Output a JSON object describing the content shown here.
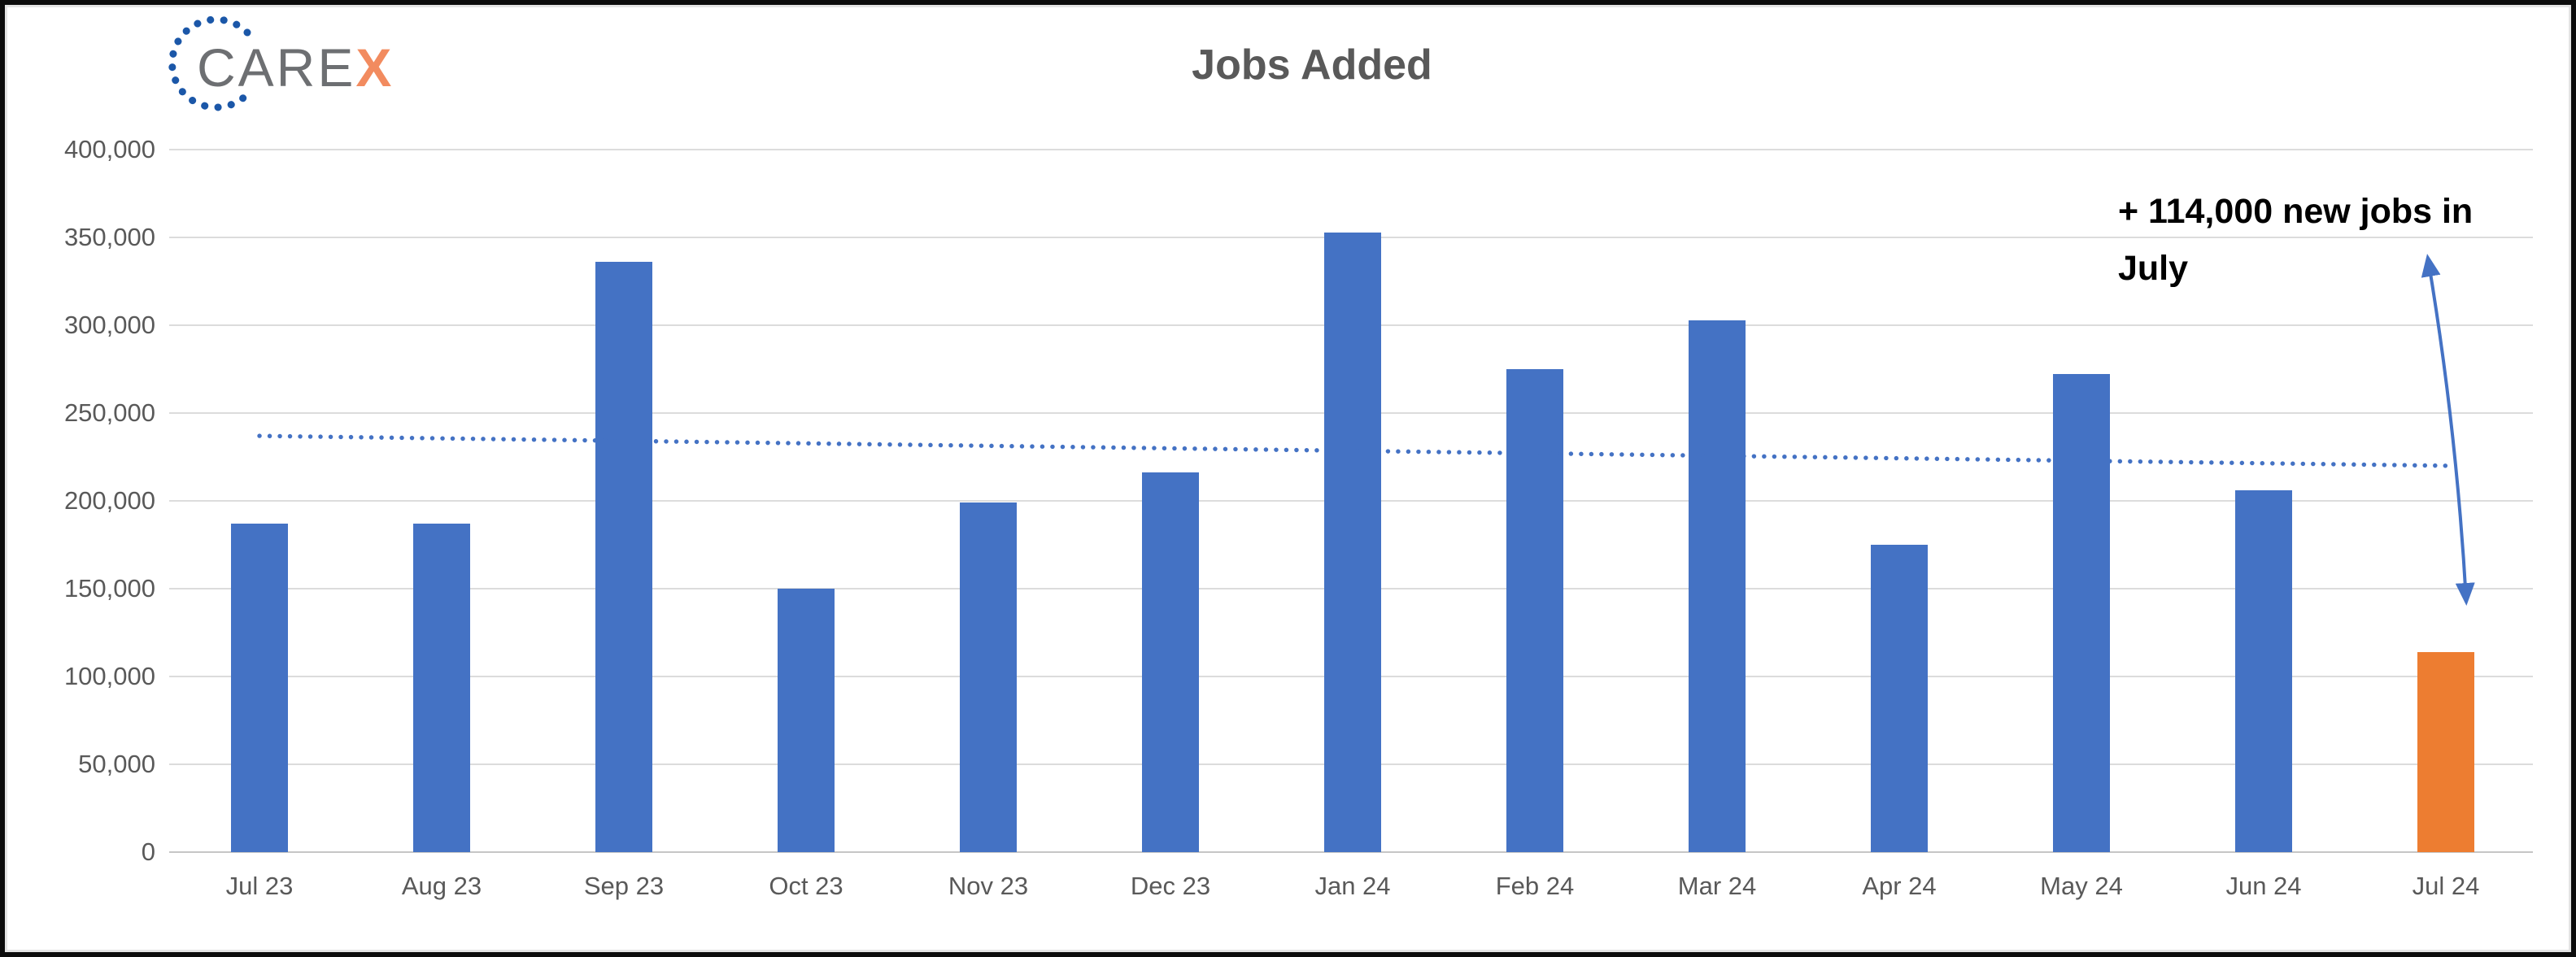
{
  "logo": {
    "text_primary": "CARE",
    "text_accent": "X"
  },
  "chart_data": {
    "type": "bar",
    "title": "Jobs Added",
    "categories": [
      "Jul 23",
      "Aug 23",
      "Sep 23",
      "Oct 23",
      "Nov 23",
      "Dec 23",
      "Jan 24",
      "Feb 24",
      "Mar 24",
      "Apr 24",
      "May 24",
      "Jun 24",
      "Jul 24"
    ],
    "values": [
      187000,
      187000,
      336000,
      150000,
      199000,
      216000,
      353000,
      275000,
      303000,
      175000,
      272000,
      206000,
      114000
    ],
    "highlight_index": 12,
    "xlabel": "",
    "ylabel": "",
    "ylim": [
      0,
      400000
    ],
    "ytick_interval": 50000,
    "ytick_labels": [
      "400,000",
      "350,000",
      "300,000",
      "250,000",
      "200,000",
      "150,000",
      "100,000",
      "50,000",
      "0"
    ],
    "grid": true,
    "legend": false,
    "trendline": {
      "style": "dotted",
      "start_value": 237000,
      "end_value": 220000
    },
    "annotation": {
      "line1": "+ 114,000 new jobs in",
      "line2": "July",
      "arrow": "double-headed"
    }
  },
  "colors": {
    "bar_blue": "#4472C4",
    "bar_orange": "#ED7D31",
    "trend_blue": "#4472C4",
    "arrow_blue": "#4472C4",
    "grid_gray": "#DCDCDC",
    "axis_text": "#595959",
    "title_text": "#595959",
    "annotation_text": "#000000",
    "logo_gray": "#6D6F72",
    "logo_orange": "#F28B5F",
    "logo_dot_blue": "#1B57A8"
  }
}
